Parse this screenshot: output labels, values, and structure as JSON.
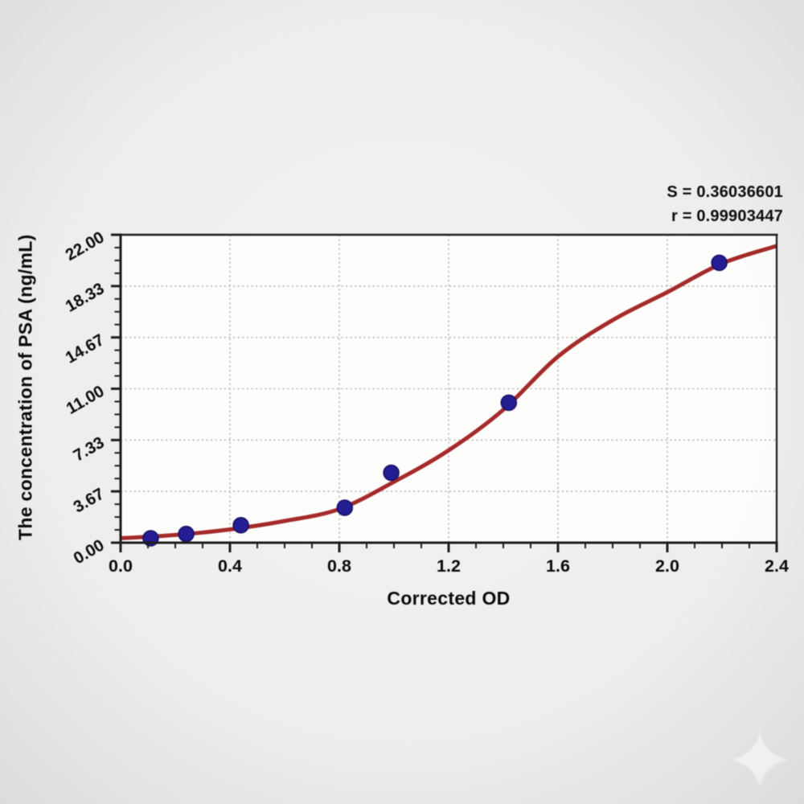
{
  "page": {
    "background": "#eeeeec"
  },
  "chart_data": {
    "type": "scatter",
    "title": "",
    "xlabel": "Corrected OD",
    "ylabel": "The concentration of PSA (ng/mL)",
    "xlim": [
      0,
      2.4
    ],
    "ylim": [
      0,
      22
    ],
    "x_major_ticks": [
      0,
      0.4,
      0.8,
      1.2,
      1.6,
      2.0,
      2.4
    ],
    "x_tick_labels": [
      "0.0",
      "0.4",
      "0.8",
      "1.2",
      "1.6",
      "2.0",
      "2.4"
    ],
    "x_minor_step": 0.1,
    "y_major_ticks": [
      0,
      3.6667,
      7.3333,
      11,
      14.6667,
      18.3333,
      22
    ],
    "y_tick_labels": [
      "0.00",
      "3.67",
      "7.33",
      "11.00",
      "14.67",
      "18.33",
      "22.00"
    ],
    "y_minor_per_major": 4,
    "grid": "dotted",
    "legend": null,
    "annotation_lines": [
      "S = 0.36036601",
      "r = 0.99903447"
    ],
    "series": [
      {
        "name": "standard-points",
        "type": "scatter",
        "color": "#241d94",
        "edge_color": "#161060",
        "marker_radius": 9.5,
        "points": [
          [
            0.11,
            0.313
          ],
          [
            0.24,
            0.625
          ],
          [
            0.44,
            1.25
          ],
          [
            0.82,
            2.5
          ],
          [
            0.99,
            5.0
          ],
          [
            1.42,
            10.0
          ],
          [
            2.19,
            20.0
          ]
        ]
      },
      {
        "name": "4pl-fit-curve",
        "type": "line",
        "color": "#a52a2a",
        "width": 5,
        "points": [
          [
            0,
            0.32
          ],
          [
            0.2,
            0.55
          ],
          [
            0.4,
            0.95
          ],
          [
            0.6,
            1.55
          ],
          [
            0.8,
            2.4
          ],
          [
            1.0,
            4.35
          ],
          [
            1.2,
            6.6
          ],
          [
            1.4,
            9.5
          ],
          [
            1.6,
            13.3
          ],
          [
            1.8,
            15.9
          ],
          [
            2.0,
            17.9
          ],
          [
            2.2,
            19.95
          ],
          [
            2.4,
            21.2
          ]
        ]
      }
    ],
    "colors": {
      "spine": "#1d1d1d",
      "grid": "#b9b9b9",
      "tick_text": "#0a0a0a",
      "plot_background": "#fdfdfc"
    }
  },
  "watermark": {
    "shape": "four-point-star",
    "color": "#ffffff"
  }
}
